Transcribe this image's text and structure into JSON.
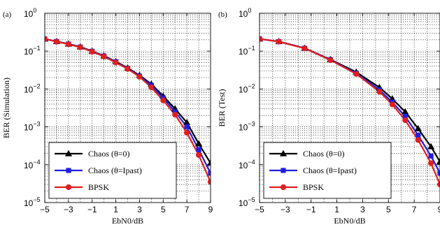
{
  "chart_data": [
    {
      "type": "line",
      "panel_label": "(a)",
      "xlabel": "EbN0/dB",
      "ylabel": "BER (Simulation)",
      "xlim": [
        -5,
        9
      ],
      "ylim": [
        1e-05,
        1
      ],
      "yscale": "log",
      "xticks": [
        -5,
        -3,
        -1,
        1,
        3,
        5,
        7,
        9
      ],
      "xtick_labels": [
        "−5",
        "−3",
        "−1",
        "1",
        "3",
        "5",
        "7",
        "9"
      ],
      "yticks": [
        {
          "value": 1,
          "base": "10",
          "exp": "0"
        },
        {
          "value": 0.1,
          "base": "10",
          "exp": "−1"
        },
        {
          "value": 0.01,
          "base": "10",
          "exp": "−2"
        },
        {
          "value": 0.001,
          "base": "10",
          "exp": "−3"
        },
        {
          "value": 0.0001,
          "base": "10",
          "exp": "−4"
        },
        {
          "value": 1e-05,
          "base": "10",
          "exp": "−5"
        }
      ],
      "grid": true,
      "legend_position": "lower-left",
      "series": [
        {
          "name": "Chaos (θ=0)",
          "color": "#000000",
          "marker": "triangle",
          "x": [
            -5,
            -4,
            -3,
            -2,
            -1,
            0,
            1,
            2,
            3,
            4,
            5,
            6,
            7,
            8,
            9
          ],
          "y": [
            0.21,
            0.18,
            0.155,
            0.13,
            0.1,
            0.075,
            0.053,
            0.036,
            0.023,
            0.0135,
            0.0065,
            0.003,
            0.0013,
            0.00036,
            0.00011
          ]
        },
        {
          "name": "Chaos (θ=Ipast)",
          "color": "#1f1fe0",
          "marker": "square",
          "x": [
            -5,
            -4,
            -3,
            -2,
            -1,
            0,
            1,
            2,
            3,
            4,
            5,
            6,
            7,
            8,
            9
          ],
          "y": [
            0.21,
            0.18,
            0.154,
            0.128,
            0.099,
            0.074,
            0.052,
            0.035,
            0.022,
            0.0125,
            0.0058,
            0.0025,
            0.001,
            0.00025,
            6e-05
          ]
        },
        {
          "name": "BPSK",
          "color": "#e01f1f",
          "marker": "circle",
          "x": [
            -5,
            -4,
            -3,
            -2,
            -1,
            0,
            1,
            2,
            3,
            4,
            5,
            6,
            7,
            8,
            9
          ],
          "y": [
            0.21,
            0.178,
            0.152,
            0.126,
            0.097,
            0.072,
            0.05,
            0.034,
            0.021,
            0.011,
            0.005,
            0.0021,
            0.0007,
            0.00018,
            3.5e-05
          ]
        }
      ]
    },
    {
      "type": "line",
      "panel_label": "(b)",
      "xlabel": "EbN0/dB",
      "ylabel": "BER (Test)",
      "xlim": [
        -5,
        9
      ],
      "ylim": [
        1e-05,
        1
      ],
      "yscale": "log",
      "xticks": [
        -5,
        -3,
        -1,
        1,
        3,
        5,
        7,
        9
      ],
      "xtick_labels": [
        "−5",
        "−3",
        "−1",
        "1",
        "3",
        "5",
        "7",
        "9"
      ],
      "yticks": [
        {
          "value": 1,
          "base": "10",
          "exp": "0"
        },
        {
          "value": 0.1,
          "base": "10",
          "exp": "−1"
        },
        {
          "value": 0.01,
          "base": "10",
          "exp": "−2"
        },
        {
          "value": 0.001,
          "base": "10",
          "exp": "−3"
        },
        {
          "value": 0.0001,
          "base": "10",
          "exp": "−4"
        },
        {
          "value": 1e-05,
          "base": "10",
          "exp": "−5"
        }
      ],
      "grid": true,
      "legend_position": "lower-left",
      "series": [
        {
          "name": "Chaos (θ=0)",
          "color": "#000000",
          "marker": "triangle",
          "x": [
            -5,
            -3.5,
            -1.5,
            0.5,
            2.5,
            4.3,
            5.3,
            6.3,
            7.3,
            8.3,
            9
          ],
          "y": [
            0.21,
            0.18,
            0.12,
            0.06,
            0.028,
            0.011,
            0.0055,
            0.0025,
            0.0009,
            0.0003,
            0.00012
          ]
        },
        {
          "name": "Chaos (θ=Ipast)",
          "color": "#1f1fe0",
          "marker": "square",
          "x": [
            -5,
            -3.5,
            -1.5,
            0.5,
            2.5,
            4.3,
            5.3,
            6.3,
            7.3,
            8.3,
            9
          ],
          "y": [
            0.21,
            0.179,
            0.119,
            0.059,
            0.026,
            0.0095,
            0.0045,
            0.0019,
            0.0006,
            0.00017,
            6e-05
          ]
        },
        {
          "name": "BPSK",
          "color": "#e01f1f",
          "marker": "circle",
          "x": [
            -5,
            -3.5,
            -1.5,
            0.5,
            2.5,
            4.3,
            5.3,
            6.3,
            7.3,
            8.3,
            9
          ],
          "y": [
            0.21,
            0.178,
            0.118,
            0.058,
            0.025,
            0.0085,
            0.0039,
            0.0015,
            0.00045,
            0.00011,
            3e-05
          ]
        }
      ]
    }
  ]
}
